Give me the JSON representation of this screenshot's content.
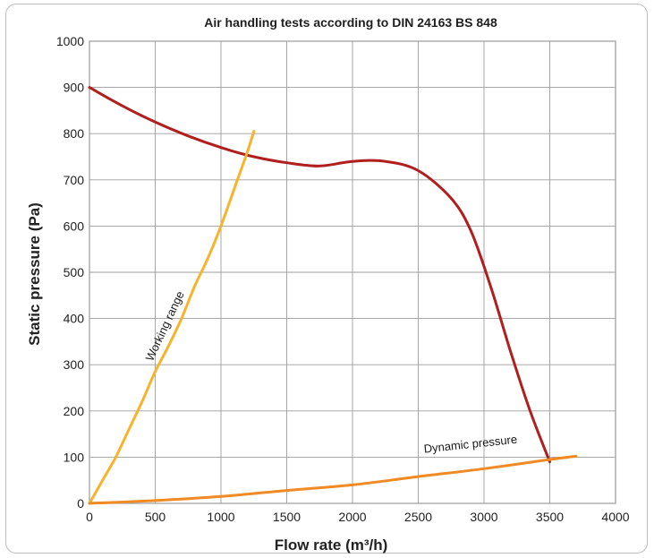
{
  "chart_data": {
    "type": "line",
    "title": "Air handling tests according to DIN 24163 BS 848",
    "xlabel": "Flow rate  (m³/h)",
    "ylabel": "Static pressure (Pa)",
    "xlim": [
      0,
      4000
    ],
    "ylim": [
      0,
      1000
    ],
    "x_ticks": [
      "0",
      "500",
      "1000",
      "1500",
      "2000",
      "2500",
      "3000",
      "3500",
      "4000"
    ],
    "y_ticks": [
      "0",
      "100",
      "200",
      "300",
      "400",
      "500",
      "600",
      "700",
      "800",
      "900",
      "1000"
    ],
    "grid": true,
    "series": [
      {
        "color": "#b01e1e",
        "x": [
          0,
          250,
          500,
          750,
          1000,
          1250,
          1500,
          1750,
          2000,
          2250,
          2500,
          2750,
          2900,
          3050,
          3200,
          3350,
          3500
        ],
        "y": [
          900,
          860,
          825,
          795,
          770,
          750,
          737,
          730,
          740,
          740,
          720,
          660,
          590,
          470,
          330,
          200,
          90
        ]
      },
      {
        "color": "#f7b32b",
        "x": [
          0,
          100,
          200,
          300,
          400,
          500,
          600,
          700,
          800,
          900,
          1000,
          1100,
          1200,
          1250
        ],
        "y": [
          0,
          50,
          100,
          160,
          220,
          285,
          340,
          400,
          470,
          530,
          600,
          680,
          760,
          805
        ]
      },
      {
        "color": "#f08a24",
        "x": [
          0,
          500,
          1000,
          1500,
          2000,
          2500,
          3000,
          3500,
          3700
        ],
        "y": [
          0,
          6,
          15,
          28,
          40,
          58,
          75,
          95,
          102
        ]
      }
    ],
    "annotations": [
      {
        "text": "Working range",
        "x": 600,
        "y": 380,
        "rotation": -65
      },
      {
        "text": "Dynamic pressure",
        "x": 2900,
        "y": 120,
        "rotation": -6
      }
    ]
  }
}
